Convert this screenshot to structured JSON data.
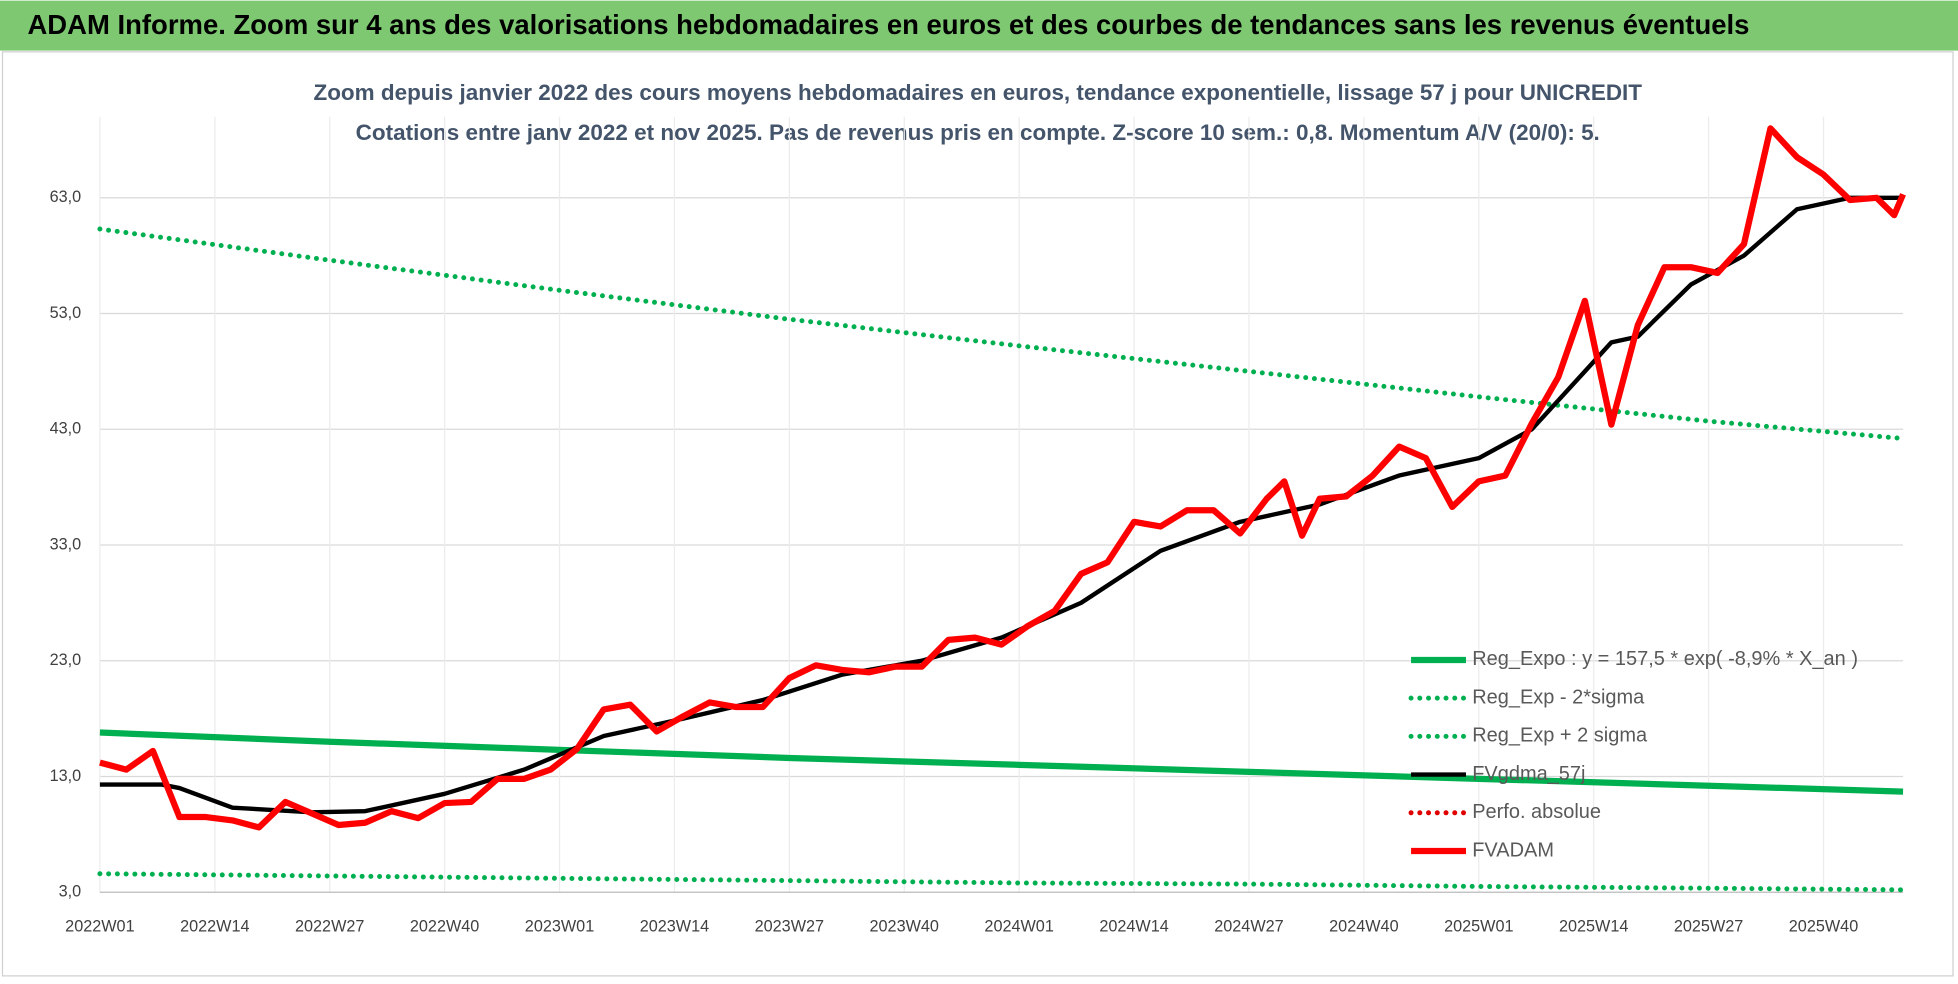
{
  "header": {
    "title": "ADAM Informe. Zoom sur 4 ans des valorisations hebdomadaires en euros et des courbes de tendances sans les revenus éventuels"
  },
  "chart_data": {
    "type": "line",
    "subtitle": [
      "Zoom depuis janvier 2022 des cours moyens hebdomadaires en euros, tendance exponentielle, lissage 57 j pour UNICREDIT",
      "Cotations entre janv 2022 et nov 2025. Pas de revenus pris en compte. Z-score 10 sem.: 0,8. Momentum A/V (20/0): 5."
    ],
    "xlim": [
      0,
      204
    ],
    "xticks": [
      {
        "value": 0,
        "label": "2022W01"
      },
      {
        "value": 13,
        "label": "2022W14"
      },
      {
        "value": 26,
        "label": "2022W27"
      },
      {
        "value": 39,
        "label": "2022W40"
      },
      {
        "value": 52,
        "label": "2023W01"
      },
      {
        "value": 65,
        "label": "2023W14"
      },
      {
        "value": 78,
        "label": "2023W27"
      },
      {
        "value": 91,
        "label": "2023W40"
      },
      {
        "value": 104,
        "label": "2024W01"
      },
      {
        "value": 117,
        "label": "2024W14"
      },
      {
        "value": 130,
        "label": "2024W27"
      },
      {
        "value": 143,
        "label": "2024W40"
      },
      {
        "value": 156,
        "label": "2025W01"
      },
      {
        "value": 169,
        "label": "2025W14"
      },
      {
        "value": 182,
        "label": "2025W27"
      },
      {
        "value": 195,
        "label": "2025W40"
      }
    ],
    "ylim": [
      3,
      70
    ],
    "yticks": [
      {
        "value": 3,
        "label": "3,0"
      },
      {
        "value": 13,
        "label": "13,0"
      },
      {
        "value": 23,
        "label": "23,0"
      },
      {
        "value": 33,
        "label": "33,0"
      },
      {
        "value": 43,
        "label": "43,0"
      },
      {
        "value": 53,
        "label": "53,0"
      },
      {
        "value": 63,
        "label": "63,0"
      }
    ],
    "grid": true,
    "legend": "right",
    "series": [
      {
        "name": "Reg_Expo : y = 157,5 * exp( -8,9% *  X_an )",
        "color": "#00b050",
        "style": "solid",
        "x": [
          0,
          26,
          52,
          78,
          104,
          130,
          156,
          182,
          204
        ],
        "values": [
          16.8,
          16.0,
          15.3,
          14.6,
          14.0,
          13.4,
          12.8,
          12.2,
          11.7
        ]
      },
      {
        "name": "Reg_Exp - 2*sigma",
        "color": "#00b050",
        "style": "dotted",
        "x": [
          0,
          26,
          52,
          78,
          104,
          130,
          156,
          182,
          204
        ],
        "values": [
          4.6,
          4.4,
          4.2,
          4.0,
          3.8,
          3.7,
          3.5,
          3.35,
          3.2
        ]
      },
      {
        "name": "Reg_Exp + 2 sigma",
        "color": "#00b050",
        "style": "dotted",
        "x": [
          0,
          26,
          52,
          78,
          104,
          130,
          156,
          182,
          204
        ],
        "values": [
          60.3,
          57.6,
          55.0,
          52.5,
          50.2,
          48.0,
          45.8,
          43.7,
          42.2
        ]
      },
      {
        "name": "FVgdma_57j",
        "color": "#000000",
        "style": "solid",
        "x": [
          0,
          7,
          9,
          15,
          24,
          30,
          39,
          48,
          57,
          66,
          75,
          84,
          93,
          102,
          111,
          120,
          129,
          138,
          147,
          156,
          162,
          168,
          171,
          174,
          180,
          186,
          192,
          198,
          204
        ],
        "values": [
          12.3,
          12.3,
          12.0,
          10.3,
          9.9,
          10.0,
          11.5,
          13.6,
          16.5,
          18.0,
          19.6,
          21.8,
          23.0,
          25.0,
          28.0,
          32.5,
          35.0,
          36.5,
          39.0,
          40.5,
          43.0,
          48.0,
          50.5,
          51.0,
          55.5,
          58.0,
          62.0,
          63.0,
          63.0
        ]
      },
      {
        "name": "Perfo. absolue",
        "color": "#e00000",
        "style": "dotted",
        "x": [],
        "values": []
      },
      {
        "name": "FVADAM",
        "color": "#ff0000",
        "style": "solid",
        "x": [
          0,
          3,
          6,
          9,
          12,
          15,
          18,
          21,
          24,
          27,
          30,
          33,
          36,
          39,
          42,
          45,
          48,
          51,
          54,
          57,
          60,
          63,
          66,
          69,
          72,
          75,
          78,
          81,
          84,
          87,
          90,
          93,
          96,
          99,
          102,
          105,
          108,
          111,
          114,
          117,
          120,
          123,
          126,
          129,
          132,
          134,
          136,
          138,
          141,
          144,
          147,
          150,
          153,
          156,
          159,
          162,
          165,
          168,
          171,
          174,
          177,
          180,
          183,
          186,
          189,
          192,
          195,
          198,
          201,
          203,
          204
        ],
        "values": [
          14.2,
          13.6,
          15.2,
          9.5,
          9.5,
          9.2,
          8.6,
          10.8,
          9.8,
          8.8,
          9.0,
          10.0,
          9.4,
          10.7,
          10.8,
          12.8,
          12.8,
          13.6,
          15.4,
          18.8,
          19.2,
          16.9,
          18.2,
          19.4,
          19.0,
          19.0,
          21.5,
          22.6,
          22.2,
          22.0,
          22.5,
          22.5,
          24.8,
          25.0,
          24.4,
          26.0,
          27.3,
          30.5,
          31.5,
          35.0,
          34.6,
          36.0,
          36.0,
          34.0,
          37.0,
          38.5,
          33.8,
          37.0,
          37.2,
          39.0,
          41.5,
          40.5,
          36.3,
          38.5,
          39.0,
          43.5,
          47.5,
          54.1,
          43.4,
          52.0,
          57.0,
          57.0,
          56.5,
          59.0,
          69.0,
          66.5,
          65.0,
          62.8,
          63.0,
          61.5,
          63.3
        ]
      }
    ]
  }
}
